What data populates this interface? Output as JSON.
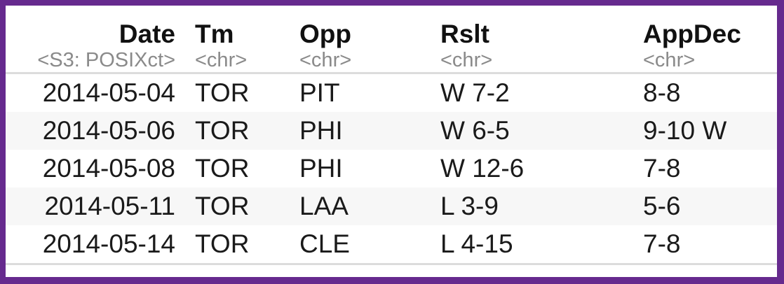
{
  "table": {
    "columns": [
      {
        "name": "Date",
        "type": "<S3: POSIXct>"
      },
      {
        "name": "Tm",
        "type": "<chr>"
      },
      {
        "name": "Opp",
        "type": "<chr>"
      },
      {
        "name": "Rslt",
        "type": "<chr>"
      },
      {
        "name": "AppDec",
        "type": "<chr>"
      }
    ],
    "rows": [
      {
        "date": "2014-05-04",
        "tm": "TOR",
        "opp": "PIT",
        "rslt": "W 7-2",
        "appdec": "8-8"
      },
      {
        "date": "2014-05-06",
        "tm": "TOR",
        "opp": "PHI",
        "rslt": "W 6-5",
        "appdec": "9-10 W"
      },
      {
        "date": "2014-05-08",
        "tm": "TOR",
        "opp": "PHI",
        "rslt": "W 12-6",
        "appdec": "7-8"
      },
      {
        "date": "2014-05-11",
        "tm": "TOR",
        "opp": "LAA",
        "rslt": "L 3-9",
        "appdec": "5-6"
      },
      {
        "date": "2014-05-14",
        "tm": "TOR",
        "opp": "CLE",
        "rslt": "L 4-15",
        "appdec": "7-8"
      }
    ]
  },
  "colors": {
    "frame_border": "#662a8e",
    "row_stripe": "#f7f7f7",
    "divider": "#dcdcdc",
    "type_text": "#8a8a8a"
  }
}
